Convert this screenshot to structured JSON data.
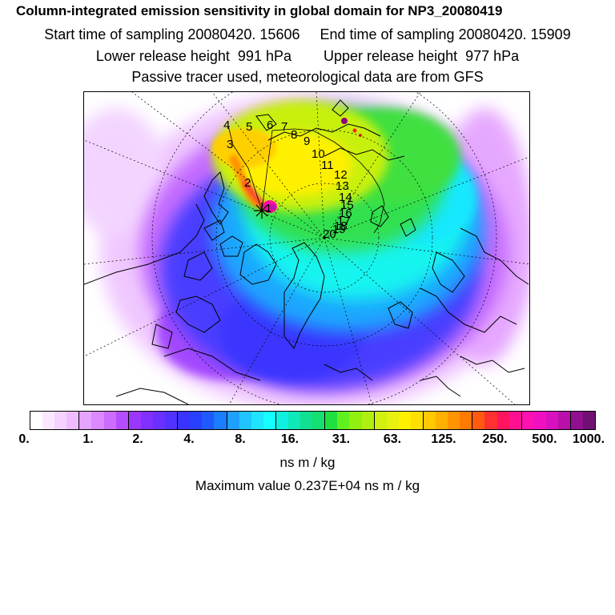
{
  "header": {
    "title": "Column-integrated emission sensitivity in global domain for NP3_20080419",
    "line2": "Start time of sampling 20080420. 15606     End time of sampling 20080420. 15909",
    "line3": "Lower release height  991 hPa        Upper release height  977 hPa",
    "line4": "Passive tracer used, meteorological data are from GFS"
  },
  "legend": {
    "unit": "ns m / kg",
    "max_value": "Maximum value  0.237E+04 ns m / kg",
    "ticks": [
      "0.",
      "1.",
      "2.",
      "4.",
      "8.",
      "16.",
      "31.",
      "63.",
      "125.",
      "250.",
      "500.",
      "1000."
    ],
    "colors": [
      "#ffffff",
      "#fbe8ff",
      "#f5d2ff",
      "#efbcff",
      "#e6a2ff",
      "#dc88ff",
      "#cc6dff",
      "#b64cff",
      "#9b36ff",
      "#8030ff",
      "#6a30ff",
      "#5232ff",
      "#3a33ff",
      "#2a40ff",
      "#1f5aff",
      "#1a7cff",
      "#1fa0ff",
      "#20c4ff",
      "#1ee4ff",
      "#14ffff",
      "#10f0e0",
      "#10e8b8",
      "#10e090",
      "#14e070",
      "#20e040",
      "#60f020",
      "#90f010",
      "#b0f010",
      "#d0f010",
      "#e8f010",
      "#fff000",
      "#ffe000",
      "#ffc800",
      "#ffb000",
      "#ff9400",
      "#ff7a00",
      "#ff5a10",
      "#ff3030",
      "#ff1460",
      "#ff1090",
      "#ff10b0",
      "#f010c0",
      "#d810c0",
      "#b810a8",
      "#901090",
      "#701070"
    ]
  },
  "map": {
    "trajectory_labels": [
      "1",
      "2",
      "3",
      "4",
      "5",
      "6",
      "7",
      "8",
      "9",
      "10",
      "11",
      "12",
      "13",
      "14",
      "15",
      "16",
      "17",
      "18",
      "19",
      "20"
    ],
    "release_marker": "star"
  }
}
